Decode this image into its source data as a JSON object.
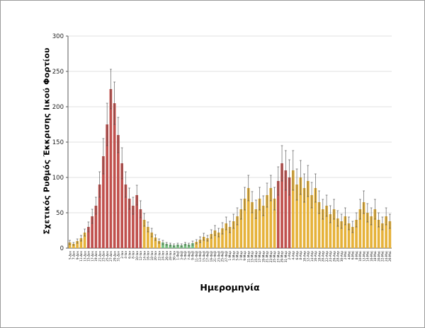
{
  "figure": {
    "background": "#ffffff",
    "border_color": "#9b9b9b"
  },
  "chart_data": {
    "type": "bar",
    "title": "",
    "xlabel": "Ημερομηνία",
    "ylabel": "Σχετικός Ρυθμός Έκκρισης Ιικού Φορτίου",
    "ylim": [
      0,
      300
    ],
    "yticks": [
      0,
      50,
      100,
      150,
      200,
      250,
      300
    ],
    "grid": true,
    "legend": "none",
    "error_bars": true,
    "colors": {
      "r": "#c0504d",
      "y": "#e6b23a",
      "g": "#76c07d"
    },
    "style": {
      "grid_color": "#d9d9d9",
      "axis_color": "#595959",
      "error_color": "#4a4a4a",
      "tick_label_color": "#222222"
    },
    "categories": [
      "5-Δεκ",
      "7-Δεκ",
      "9-Δεκ",
      "11-Δεκ",
      "13-Δεκ",
      "15-Δεκ",
      "17-Δεκ",
      "19-Δεκ",
      "21-Δεκ",
      "23-Δεκ",
      "25-Δεκ",
      "27-Δεκ",
      "29-Δεκ",
      "31-Δεκ",
      "2-Ιαν",
      "4-Ιαν",
      "6-Ιαν",
      "8-Ιαν",
      "10-Ιαν",
      "12-Ιαν",
      "14-Ιαν",
      "16-Ιαν",
      "18-Ιαν",
      "20-Ιαν",
      "22-Ιαν",
      "24-Ιαν",
      "26-Ιαν",
      "28-Ιαν",
      "30-Ιαν",
      "1-Φεβ",
      "3-Φεβ",
      "5-Φεβ",
      "7-Φεβ",
      "9-Φεβ",
      "11-Φεβ",
      "13-Φεβ",
      "15-Φεβ",
      "17-Φεβ",
      "19-Φεβ",
      "21-Φεβ",
      "23-Φεβ",
      "25-Φεβ",
      "27-Φεβ",
      "1-Μαρ",
      "3-Μαρ",
      "5-Μαρ",
      "7-Μαρ",
      "9-Μαρ",
      "11-Μαρ",
      "13-Μαρ",
      "15-Μαρ",
      "17-Μαρ",
      "19-Μαρ",
      "21-Μαρ",
      "23-Μαρ",
      "25-Μαρ",
      "27-Μαρ",
      "29-Μαρ",
      "31-Μαρ",
      "2-Απρ",
      "4-Απρ",
      "6-Απρ",
      "8-Απρ",
      "10-Απρ",
      "12-Απρ",
      "14-Απρ",
      "16-Απρ",
      "18-Απρ",
      "20-Απρ",
      "22-Απρ",
      "24-Απρ",
      "26-Απρ",
      "28-Απρ",
      "30-Απρ",
      "2-Μαϊ",
      "4-Μαϊ",
      "6-Μαϊ",
      "8-Μαϊ",
      "10-Μαϊ",
      "12-Μαϊ",
      "14-Μαϊ",
      "16-Μαϊ",
      "18-Μαϊ",
      "20-Μαϊ",
      "22-Μαϊ",
      "24-Μαϊ",
      "26-Μαϊ"
    ],
    "values": [
      8,
      6,
      10,
      14,
      22,
      30,
      45,
      60,
      90,
      130,
      175,
      225,
      205,
      160,
      120,
      90,
      70,
      60,
      75,
      55,
      40,
      30,
      22,
      15,
      10,
      8,
      6,
      5,
      4,
      5,
      4,
      6,
      5,
      7,
      9,
      12,
      16,
      14,
      20,
      25,
      22,
      28,
      35,
      30,
      38,
      45,
      55,
      70,
      85,
      65,
      55,
      70,
      60,
      75,
      85,
      70,
      95,
      120,
      110,
      100,
      110,
      90,
      100,
      85,
      95,
      75,
      85,
      65,
      55,
      60,
      48,
      55,
      42,
      38,
      45,
      35,
      30,
      40,
      55,
      65,
      50,
      45,
      55,
      40,
      35,
      45,
      38
    ],
    "errors": [
      3,
      2,
      3,
      4,
      5,
      7,
      10,
      12,
      18,
      25,
      30,
      28,
      30,
      25,
      22,
      18,
      15,
      12,
      14,
      12,
      9,
      7,
      6,
      4,
      3,
      3,
      2,
      2,
      2,
      2,
      2,
      2,
      2,
      3,
      3,
      4,
      5,
      4,
      6,
      7,
      6,
      8,
      9,
      8,
      10,
      12,
      14,
      16,
      18,
      15,
      13,
      16,
      14,
      17,
      18,
      16,
      20,
      25,
      28,
      25,
      28,
      22,
      24,
      20,
      22,
      18,
      20,
      16,
      14,
      15,
      12,
      14,
      11,
      10,
      12,
      9,
      8,
      10,
      14,
      16,
      13,
      12,
      14,
      10,
      9,
      12,
      10
    ],
    "bands": [
      "y",
      "y",
      "y",
      "y",
      "y",
      "r",
      "r",
      "r",
      "r",
      "r",
      "r",
      "r",
      "r",
      "r",
      "r",
      "r",
      "r",
      "r",
      "r",
      "r",
      "y",
      "y",
      "y",
      "y",
      "y",
      "g",
      "g",
      "g",
      "g",
      "g",
      "g",
      "g",
      "g",
      "g",
      "y",
      "y",
      "y",
      "y",
      "y",
      "y",
      "y",
      "y",
      "y",
      "y",
      "y",
      "y",
      "y",
      "y",
      "y",
      "y",
      "y",
      "y",
      "y",
      "y",
      "y",
      "y",
      "r",
      "r",
      "r",
      "r",
      "y",
      "y",
      "y",
      "y",
      "y",
      "y",
      "y",
      "y",
      "y",
      "y",
      "y",
      "y",
      "y",
      "y",
      "y",
      "y",
      "y",
      "y",
      "y",
      "y",
      "y",
      "y",
      "y",
      "y",
      "y",
      "y",
      "y"
    ]
  }
}
